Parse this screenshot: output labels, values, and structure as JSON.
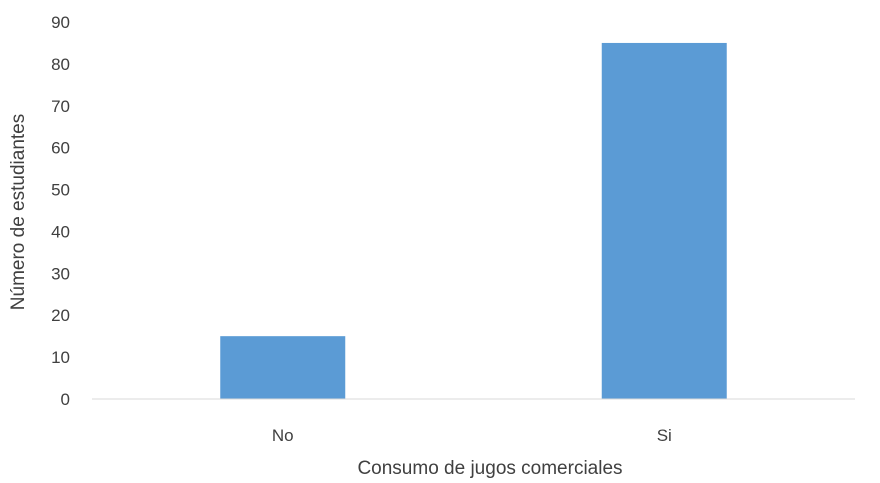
{
  "chart_data": {
    "type": "bar",
    "title": "",
    "xlabel": "Consumo de jugos comerciales",
    "ylabel": "Número de estudiantes",
    "categories": [
      "No",
      "Si"
    ],
    "values": [
      15,
      85
    ],
    "ylim": [
      0,
      90
    ],
    "yticks": [
      "0",
      "10",
      "20",
      "30",
      "40",
      "50",
      "60",
      "70",
      "80",
      "90"
    ],
    "grid": false,
    "legend": "none",
    "bar_color": "#5B9BD5",
    "axis_color": "#D9D9D9",
    "text_color": "#404040"
  }
}
